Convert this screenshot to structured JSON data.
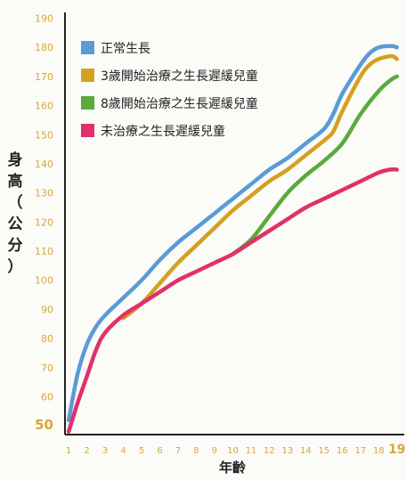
{
  "chart_data": {
    "type": "line",
    "xlabel": "年齡",
    "ylabel": "身高（公分）",
    "ylabel_chars": [
      "身",
      "高",
      "（",
      "公",
      "分",
      "）"
    ],
    "x": [
      1,
      2,
      3,
      4,
      5,
      6,
      7,
      8,
      9,
      10,
      11,
      12,
      13,
      14,
      15,
      16,
      17,
      18,
      19
    ],
    "x_ticks": [
      "1",
      "2",
      "3",
      "4",
      "5",
      "6",
      "7",
      "8",
      "9",
      "10",
      "11",
      "12",
      "13",
      "14",
      "15",
      "16",
      "17",
      "18",
      "19"
    ],
    "y_ticks": [
      50,
      60,
      70,
      80,
      90,
      100,
      110,
      120,
      130,
      140,
      150,
      160,
      170,
      180,
      190
    ],
    "xlim": [
      0.8,
      19.4
    ],
    "ylim": [
      47,
      192
    ],
    "tick_color": "#d6a83a",
    "series": [
      {
        "name": "正常生長",
        "color": "#5b9bd5",
        "x": [
          1,
          1.5,
          2,
          2.5,
          3,
          4,
          5,
          6,
          7,
          8,
          9,
          10,
          11,
          12,
          13,
          14,
          15,
          15.5,
          16,
          17,
          17.5,
          18,
          18.7,
          19
        ],
        "values": [
          52,
          68,
          78,
          84,
          88,
          94,
          100,
          107,
          113,
          118,
          123,
          128,
          133,
          138,
          142,
          147,
          152,
          157,
          164,
          174,
          178,
          180,
          180.5,
          180
        ]
      },
      {
        "name": "3歲開始治療之生長遲緩兒童",
        "color": "#d4a020",
        "x": [
          4,
          5,
          6,
          7,
          8,
          9,
          10,
          11,
          12,
          13,
          14,
          15,
          15.5,
          16,
          17,
          17.5,
          18,
          18.7,
          19
        ],
        "values": [
          87,
          92,
          99,
          106,
          112,
          118,
          124,
          129,
          134,
          138,
          143,
          148,
          151,
          158,
          170,
          174,
          176,
          177,
          176
        ]
      },
      {
        "name": "8歲開始治療之生長遲緩兒童",
        "color": "#5aaa3c",
        "x": [
          10,
          11,
          12,
          13,
          14,
          15,
          16,
          17,
          18,
          18.7,
          19
        ],
        "values": [
          109,
          114,
          122,
          130,
          136,
          141,
          147,
          157,
          165,
          169,
          170
        ]
      },
      {
        "name": "未治療之生長遲緩兒童",
        "color": "#e0316a",
        "x": [
          1,
          1.5,
          2,
          2.5,
          3,
          4,
          5,
          6,
          7,
          8,
          9,
          10,
          11,
          12,
          13,
          14,
          15,
          16,
          17,
          18,
          18.6,
          19
        ],
        "values": [
          48,
          58,
          67,
          76,
          82,
          88,
          92,
          96,
          100,
          103,
          106,
          109,
          113,
          117,
          121,
          125,
          128,
          131,
          134,
          137,
          138,
          138
        ]
      }
    ]
  }
}
